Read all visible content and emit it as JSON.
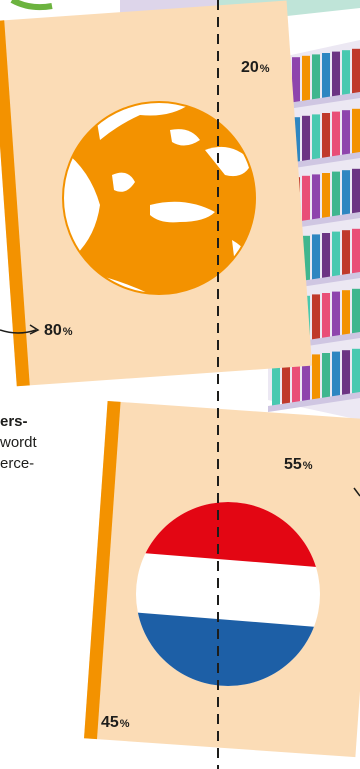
{
  "colors": {
    "book_cover": "#fbdcb6",
    "book_spine": "#f39200",
    "globe_land": "#f39200",
    "flag_red": "#e30613",
    "flag_white": "#ffffff",
    "flag_blue": "#1d5fa6",
    "divider": "#1d1d1b"
  },
  "top_book": {
    "icon": "world-globe-europe",
    "right_value": "20",
    "left_value": "80",
    "unit": "%"
  },
  "bottom_book": {
    "icon": "dutch-flag",
    "right_value": "55",
    "left_value": "45",
    "unit": "%"
  },
  "caption_lines": [
    "ers-",
    "wordt",
    "erce-"
  ]
}
